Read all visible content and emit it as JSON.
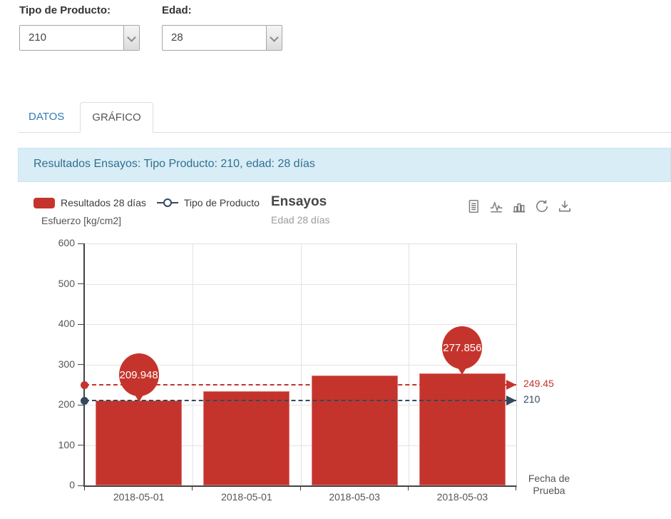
{
  "filters": {
    "tipo_label": "Tipo de Producto:",
    "tipo_value": "210",
    "edad_label": "Edad:",
    "edad_value": "28"
  },
  "tabs": [
    {
      "label": "DATOS",
      "active": false
    },
    {
      "label": "GRÁFICO",
      "active": true
    }
  ],
  "panel": {
    "header": "Resultados Ensayos: Tipo Producto: 210, edad: 28 días"
  },
  "toolbar": {
    "icons": [
      "document-icon",
      "line-chart-icon",
      "bar-chart-icon",
      "refresh-icon",
      "download-icon"
    ]
  },
  "chart_data": {
    "type": "bar",
    "title": "Ensayos",
    "subtitle": "Edad 28 días",
    "ylabel": "Esfuerzo [kg/cm2]",
    "xlabel": "Fecha de Prueba",
    "categories": [
      "2018-05-01",
      "2018-05-01",
      "2018-05-03",
      "2018-05-03"
    ],
    "series": [
      {
        "name": "Resultados 28 días",
        "type": "bar",
        "color": "#c5342c",
        "values": [
          209.948,
          234,
          272,
          277.856
        ],
        "value_labels": [
          "209.948",
          null,
          null,
          "277.856"
        ]
      },
      {
        "name": "Tipo de Producto",
        "type": "line",
        "color": "#34495e"
      }
    ],
    "plot_lines": [
      {
        "value": 249.45,
        "label": "249.45",
        "color": "#c5342c"
      },
      {
        "value": 210,
        "label": "210",
        "color": "#34495e"
      }
    ],
    "ylim": [
      0,
      600
    ],
    "yticks": [
      0,
      100,
      200,
      300,
      400,
      500,
      600
    ],
    "legend_position": "top",
    "grid": true
  },
  "colors": {
    "accent_red": "#c5342c",
    "accent_navy": "#34495e",
    "panel_header_bg": "#d9edf7",
    "panel_header_text": "#31708f",
    "tab_link": "#337ab7"
  }
}
